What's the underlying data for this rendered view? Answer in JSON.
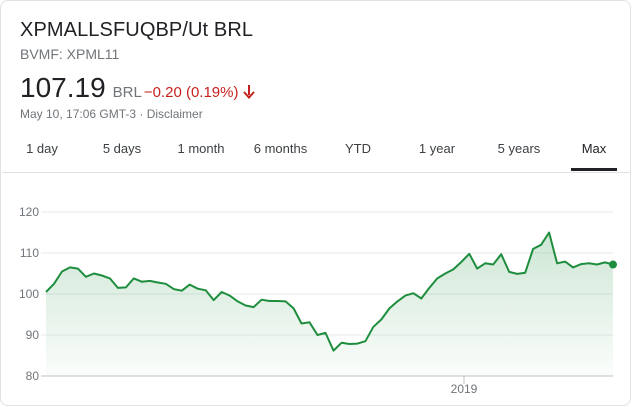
{
  "header": {
    "title": "XPMALLSFUQBP/Ut BRL",
    "ticker": "BVMF: XPML11"
  },
  "quote": {
    "price": "107.19",
    "currency": "BRL",
    "change": "−0.20 (0.19%)",
    "timestamp": "May 10, 17:06 GMT-3 · Disclaimer",
    "change_color": "#c5221f"
  },
  "tabs": [
    {
      "label": "1 day",
      "active": false
    },
    {
      "label": "5 days",
      "active": false
    },
    {
      "label": "1 month",
      "active": false
    },
    {
      "label": "6 months",
      "active": false
    },
    {
      "label": "YTD",
      "active": false
    },
    {
      "label": "1 year",
      "active": false
    },
    {
      "label": "5 years",
      "active": false
    },
    {
      "label": "Max",
      "active": true
    }
  ],
  "chart_data": {
    "type": "area",
    "title": "",
    "xlabel": "",
    "ylabel": "",
    "ylim": [
      80,
      120
    ],
    "yticks": [
      120,
      110,
      100,
      90,
      80
    ],
    "xtick_labels": [
      "2019"
    ],
    "grid": true,
    "line_color": "#1e8e3e",
    "values": [
      100.5,
      102.5,
      105.5,
      106.5,
      106.2,
      104.2,
      105,
      104.5,
      103.8,
      101.5,
      101.6,
      103.8,
      103,
      103.2,
      102.8,
      102.5,
      101.2,
      100.8,
      102.3,
      101.3,
      100.9,
      98.5,
      100.5,
      99.6,
      98.2,
      97.2,
      96.8,
      98.6,
      98.3,
      98.3,
      98.2,
      96.5,
      92.8,
      93.1,
      90,
      90.5,
      86.2,
      88.1,
      87.8,
      87.9,
      88.5,
      92,
      93.8,
      96.5,
      98.2,
      99.6,
      100.2,
      98.9,
      101.5,
      103.8,
      105,
      106,
      107.8,
      109.8,
      106.2,
      107.5,
      107.2,
      109.7,
      105.4,
      104.9,
      105.2,
      111,
      112,
      115,
      107.5,
      107.9,
      106.5,
      107.3,
      107.5,
      107.2,
      107.7,
      107.19
    ]
  }
}
